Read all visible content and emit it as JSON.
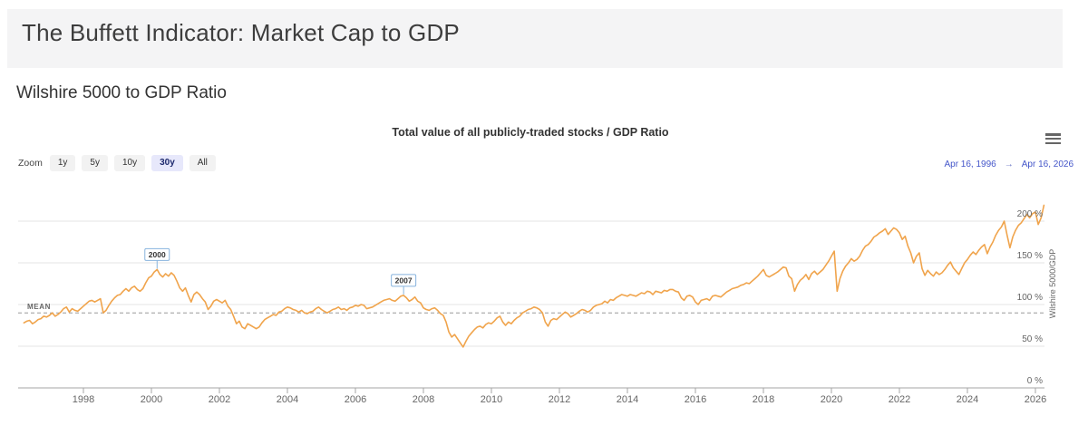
{
  "header": {
    "title": "The Buffett Indicator: Market Cap to GDP"
  },
  "section": {
    "title": "Wilshire 5000 to GDP Ratio"
  },
  "toolbar": {
    "zoom_label": "Zoom",
    "zoom_buttons": [
      "1y",
      "5y",
      "10y",
      "30y",
      "All"
    ],
    "active_button": "30y",
    "range_from": "Apr 16, 1996",
    "range_arrow": "→",
    "range_to": "Apr 16, 2026"
  },
  "chart_data": {
    "type": "line",
    "title": "Total value of all publicly-traded stocks / GDP Ratio",
    "y_axis_title": "Wilshire 5000/GDP",
    "ylim": [
      0,
      242
    ],
    "grid": true,
    "legend": "none",
    "y_ticks": [
      {
        "value": 0,
        "label": "0 %"
      },
      {
        "value": 50,
        "label": "50 %"
      },
      {
        "value": 100,
        "label": "100 %"
      },
      {
        "value": 150,
        "label": "150 %"
      },
      {
        "value": 200,
        "label": "200 %"
      }
    ],
    "x_tick_years": [
      1998,
      2000,
      2002,
      2004,
      2006,
      2008,
      2010,
      2012,
      2014,
      2016,
      2018,
      2020,
      2022,
      2024,
      2026
    ],
    "mean": {
      "label": "MEAN",
      "value": 90
    },
    "annotations": [
      {
        "label": "2000",
        "year": 2000.167,
        "value": 142
      },
      {
        "label": "2007",
        "year": 2007.417,
        "value": 111
      }
    ],
    "series": [
      {
        "name": "Wilshire 5000 / GDP ratio (%)",
        "start_year": 1996,
        "start_month": 4,
        "interval_months": 1,
        "values": [
          78,
          80,
          81,
          77,
          79,
          82,
          83,
          86,
          85,
          87,
          90,
          86,
          88,
          91,
          95,
          97,
          91,
          95,
          93,
          92,
          95,
          98,
          101,
          104,
          105,
          103,
          105,
          107,
          90,
          93,
          99,
          104,
          108,
          111,
          112,
          116,
          119,
          116,
          120,
          122,
          118,
          116,
          119,
          126,
          132,
          134,
          139,
          142,
          136,
          133,
          137,
          134,
          138,
          135,
          128,
          120,
          116,
          120,
          111,
          103,
          112,
          115,
          112,
          107,
          103,
          94,
          98,
          104,
          106,
          104,
          102,
          105,
          98,
          94,
          86,
          77,
          80,
          73,
          71,
          77,
          75,
          73,
          71,
          73,
          78,
          82,
          84,
          86,
          88,
          87,
          91,
          92,
          95,
          97,
          96,
          94,
          93,
          91,
          93,
          90,
          89,
          91,
          92,
          95,
          97,
          94,
          92,
          90,
          92,
          94,
          95,
          97,
          94,
          95,
          93,
          96,
          97,
          99,
          98,
          100,
          99,
          95,
          96,
          97,
          99,
          101,
          103,
          105,
          106,
          107,
          105,
          104,
          107,
          110,
          111,
          108,
          104,
          106,
          109,
          104,
          102,
          96,
          94,
          93,
          95,
          96,
          93,
          89,
          87,
          79,
          67,
          61,
          64,
          59,
          54,
          49,
          56,
          62,
          66,
          70,
          73,
          74,
          72,
          76,
          78,
          77,
          80,
          84,
          86,
          79,
          75,
          79,
          77,
          81,
          84,
          86,
          90,
          92,
          94,
          95,
          97,
          96,
          94,
          90,
          79,
          74,
          81,
          83,
          82,
          85,
          88,
          91,
          89,
          85,
          87,
          89,
          92,
          94,
          93,
          91,
          93,
          97,
          99,
          100,
          101,
          104,
          102,
          106,
          105,
          108,
          110,
          112,
          111,
          110,
          112,
          111,
          110,
          112,
          114,
          113,
          116,
          115,
          112,
          116,
          115,
          114,
          117,
          116,
          118,
          118,
          116,
          115,
          108,
          105,
          110,
          111,
          109,
          103,
          100,
          105,
          106,
          107,
          105,
          110,
          111,
          110,
          109,
          112,
          115,
          117,
          119,
          120,
          121,
          123,
          124,
          126,
          125,
          128,
          131,
          134,
          138,
          142,
          135,
          133,
          135,
          137,
          139,
          142,
          145,
          144,
          134,
          131,
          116,
          124,
          129,
          132,
          136,
          130,
          137,
          140,
          136,
          139,
          142,
          147,
          152,
          158,
          164,
          116,
          131,
          140,
          146,
          150,
          155,
          152,
          154,
          158,
          165,
          170,
          172,
          176,
          181,
          183,
          186,
          188,
          191,
          184,
          188,
          192,
          190,
          186,
          178,
          182,
          170,
          162,
          150,
          158,
          162,
          143,
          135,
          141,
          137,
          134,
          139,
          136,
          138,
          142,
          147,
          151,
          144,
          140,
          136,
          143,
          150,
          154,
          159,
          163,
          160,
          165,
          169,
          172,
          161,
          169,
          175,
          183,
          189,
          193,
          200,
          183,
          168,
          181,
          189,
          195,
          198,
          203,
          208,
          204,
          209,
          211,
          196,
          204,
          219
        ]
      }
    ],
    "colors": {
      "line": "#f0a44c",
      "grid": "#e6e6e6",
      "axis": "#a6a6a6",
      "mean": "#999999",
      "flag_border": "#88b4de",
      "label_text": "#666666",
      "accent_blue": "#4355c9"
    }
  }
}
